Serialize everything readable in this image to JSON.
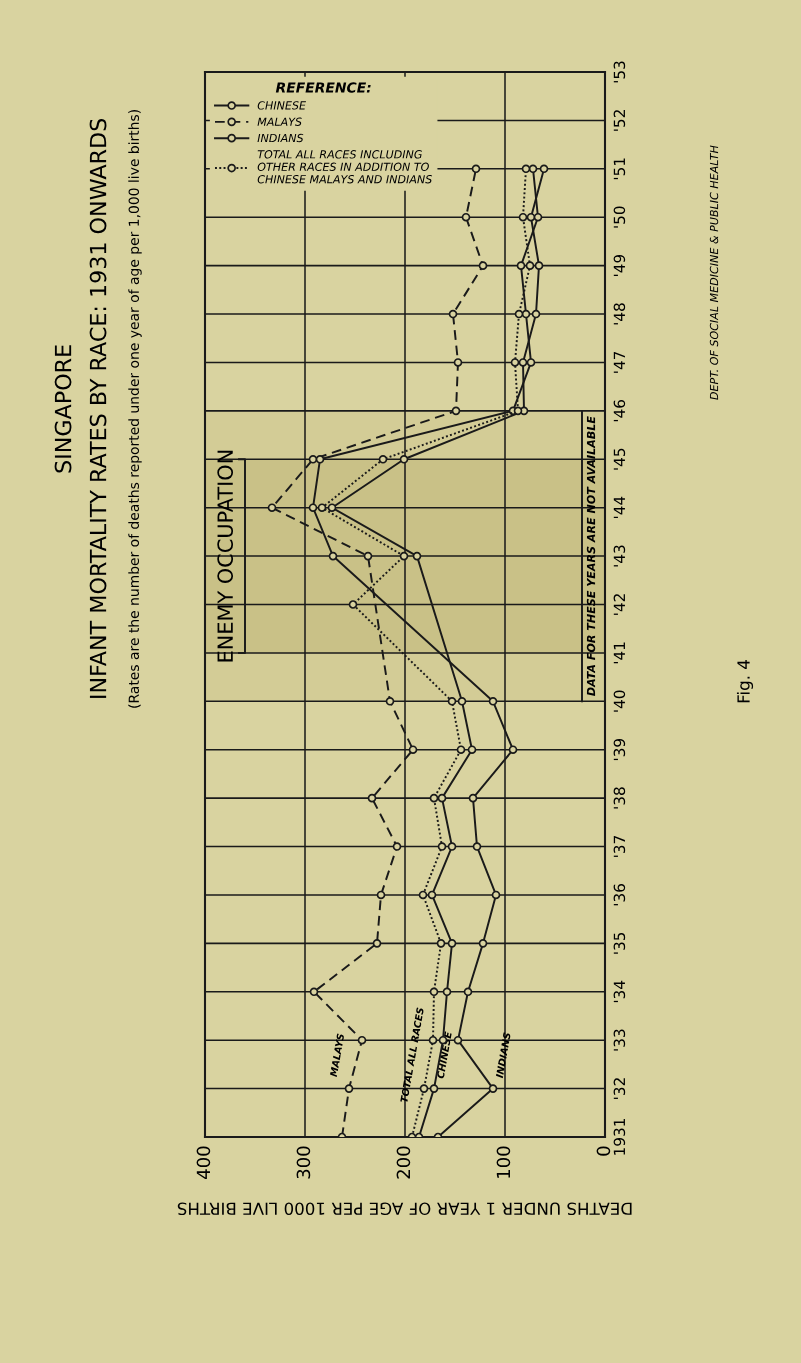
{
  "chart_data": {
    "type": "line",
    "title": "SINGAPORE\nINFANT MORTALITY RATES BY RACE: 1931 ONWARDS",
    "subtitle": "(Rates are the number of deaths reported under one year of age per 1,000 live births)",
    "xlabel": "DEATHS UNDER 1 YEAR OF AGE PER 1000 LIVE BIRTHS",
    "legend_title": "REFERENCE:",
    "orientation": "horizontal",
    "x": [
      1931,
      1932,
      1933,
      1934,
      1935,
      1936,
      1937,
      1938,
      1939,
      1940,
      1941,
      1942,
      1943,
      1944,
      1945,
      1946,
      1947,
      1948,
      1949,
      1950,
      1951
    ],
    "series": [
      {
        "name": "CHINESE",
        "color": "#1a1a1a",
        "line_style": "solid",
        "values": [
          186,
          171,
          162,
          158,
          153,
          173,
          153,
          163,
          133,
          143,
          null,
          null,
          188,
          273,
          201,
          81,
          82,
          69,
          66,
          74,
          61
        ]
      },
      {
        "name": "MALAYS",
        "color": "#1a1a1a",
        "line_style": "dashed",
        "values": [
          263,
          256,
          243,
          291,
          228,
          224,
          208,
          233,
          192,
          215,
          null,
          null,
          237,
          333,
          292,
          149,
          147,
          152,
          122,
          139,
          129
        ]
      },
      {
        "name": "INDIANS",
        "color": "#1a1a1a",
        "line_style": "solid",
        "values": [
          167,
          112,
          147,
          137,
          122,
          109,
          128,
          132,
          92,
          112,
          null,
          null,
          272,
          292,
          285,
          92,
          74,
          79,
          84,
          67,
          72
        ]
      },
      {
        "name": "TOTAL ALL RACES INCLUDING\nOTHER RACES IN ADDITION TO\nCHINESE MALAYS AND INDIANS",
        "color": "#1a1a1a",
        "line_style": "dotted",
        "values": [
          193,
          181,
          172,
          171,
          164,
          182,
          163,
          171,
          144,
          153,
          null,
          252,
          201,
          283,
          222,
          87,
          90,
          86,
          75,
          82,
          79
        ]
      }
    ],
    "xlim": [
      400,
      0
    ],
    "xticks": [
      400,
      300,
      200,
      100,
      0
    ],
    "ylim": [
      1931,
      1953
    ],
    "yticks": [
      {
        "value": 1931,
        "label": "1931"
      },
      {
        "value": 1932,
        "label": "'32"
      },
      {
        "value": 1933,
        "label": "'33"
      },
      {
        "value": 1934,
        "label": "'34"
      },
      {
        "value": 1935,
        "label": "'35"
      },
      {
        "value": 1936,
        "label": "'36"
      },
      {
        "value": 1937,
        "label": "'37"
      },
      {
        "value": 1938,
        "label": "'38"
      },
      {
        "value": 1939,
        "label": "'39"
      },
      {
        "value": 1940,
        "label": "'40"
      },
      {
        "value": 1941,
        "label": "'41"
      },
      {
        "value": 1942,
        "label": "'42"
      },
      {
        "value": 1943,
        "label": "'43"
      },
      {
        "value": 1944,
        "label": "'44"
      },
      {
        "value": 1945,
        "label": "'45"
      },
      {
        "value": 1946,
        "label": "'46"
      },
      {
        "value": 1947,
        "label": "'47"
      },
      {
        "value": 1948,
        "label": "'48"
      },
      {
        "value": 1949,
        "label": "'49"
      },
      {
        "value": 1950,
        "label": "'50"
      },
      {
        "value": 1951,
        "label": "'51"
      },
      {
        "value": 1952,
        "label": "'52"
      },
      {
        "value": 1953,
        "label": "'53"
      }
    ],
    "bands": [
      {
        "axis": "y",
        "from": 1941,
        "to": 1945,
        "label": "ENEMY OCCUPATION",
        "color": "#c9c187"
      },
      {
        "axis": "y",
        "from": 1940,
        "to": 1946,
        "label": "DATA FOR THESE YEARS ARE NOT AVAILABLE",
        "color": "#d3cc96"
      }
    ],
    "annotations": [
      {
        "text": "MALAYS",
        "x": 256,
        "y": 1932
      },
      {
        "text": "TOTAL ALL RACES",
        "x": 181,
        "y": 1932
      },
      {
        "text": "CHINESE",
        "x": 171,
        "y": 1932
      },
      {
        "text": "INDIANS",
        "x": 112,
        "y": 1932
      },
      "DEPT. OF SOCIAL MEDICINE & PUBLIC HEALTH",
      "Fig. 4"
    ],
    "grid": true,
    "legend": "top left",
    "marker": "circle"
  }
}
